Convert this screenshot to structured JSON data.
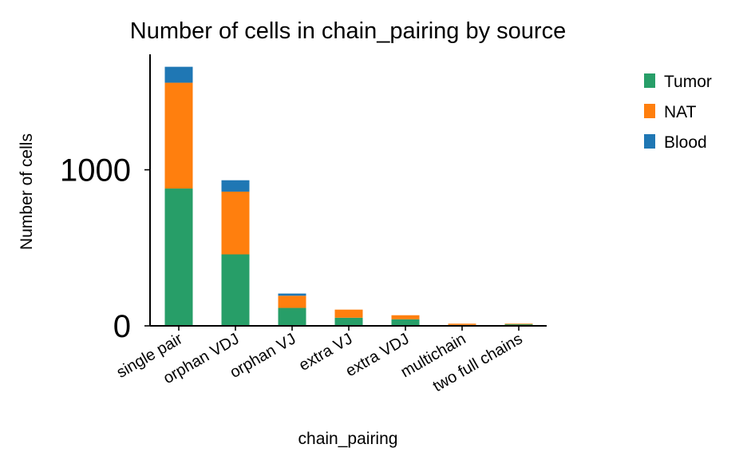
{
  "chart_data": {
    "type": "bar",
    "stacked": true,
    "title": "Number of cells in chain_pairing by source",
    "xlabel": "chain_pairing",
    "ylabel": "Number of cells",
    "categories": [
      "single pair",
      "orphan VDJ",
      "orphan VJ",
      "extra VJ",
      "extra VDJ",
      "multichain",
      "two full chains"
    ],
    "series": [
      {
        "name": "Tumor",
        "color": "#279e68",
        "values": [
          880,
          458,
          115,
          52,
          42,
          6,
          10
        ]
      },
      {
        "name": "NAT",
        "color": "#ff7f0e",
        "values": [
          678,
          402,
          78,
          52,
          26,
          8,
          4
        ]
      },
      {
        "name": "Blood",
        "color": "#1f77b4",
        "values": [
          102,
          73,
          14,
          0,
          0,
          0,
          0
        ]
      }
    ],
    "yticks": [
      0,
      1000
    ],
    "ylim": [
      0,
      1740
    ],
    "legend_position": "right-top",
    "grid": false
  }
}
